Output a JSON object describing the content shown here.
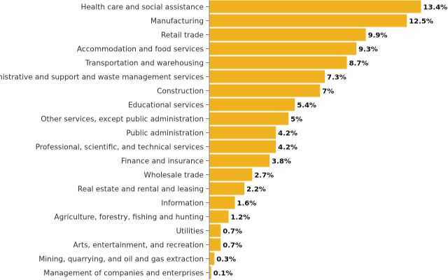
{
  "chart_data": {
    "type": "bar",
    "orientation": "horizontal",
    "categories": [
      "Health care and social assistance",
      "Manufacturing",
      "Retail trade",
      "Accommodation and food services",
      "Transportation and warehousing",
      "Administrative and support and waste management services",
      "Construction",
      "Educational services",
      "Other services, except public administration",
      "Public administration",
      "Professional, scientific, and technical services",
      "Finance and insurance",
      "Wholesale trade",
      "Real estate and rental and leasing",
      "Information",
      "Agriculture, forestry, fishing and hunting",
      "Utilities",
      "Arts, entertainment, and recreation",
      "Mining, quarrying, and oil and gas extraction",
      "Management of companies and enterprises"
    ],
    "values": [
      13.4,
      12.5,
      9.9,
      9.3,
      8.7,
      7.3,
      7,
      5.4,
      5,
      4.2,
      4.2,
      3.8,
      2.7,
      2.2,
      1.6,
      1.2,
      0.7,
      0.7,
      0.3,
      0.1
    ],
    "value_labels": [
      "13.4%",
      "12.5%",
      "9.9%",
      "9.3%",
      "8.7%",
      "7.3%",
      "7%",
      "5.4%",
      "5%",
      "4.2%",
      "4.2%",
      "3.8%",
      "2.7%",
      "2.2%",
      "1.6%",
      "1.2%",
      "0.7%",
      "0.7%",
      "0.3%",
      "0.1%"
    ],
    "xlim": [
      0,
      13.4
    ],
    "bar_color": "#f0b21e",
    "grid": false,
    "legend": "none"
  }
}
